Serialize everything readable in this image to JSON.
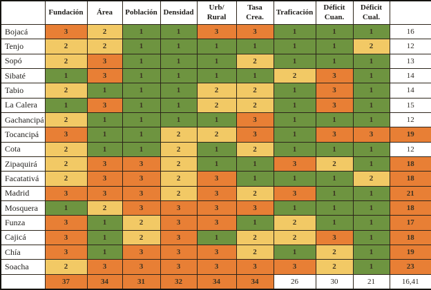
{
  "colors": {
    "score_bg": {
      "1": "#6e9440",
      "2": "#f2c965",
      "3": "#e87f35"
    },
    "highlight_bg": "#e87f35",
    "plain_bg": "#ffffff"
  },
  "header": {
    "columns": [
      [
        ""
      ],
      [
        "Fundación"
      ],
      [
        "Área"
      ],
      [
        "Población"
      ],
      [
        "Densidad"
      ],
      [
        "Urb/",
        "Rural"
      ],
      [
        "Tasa",
        "Crea."
      ],
      [
        "Traficación"
      ],
      [
        "Déficit",
        "Cuan."
      ],
      [
        "Déficit",
        "Cual."
      ],
      [
        ""
      ]
    ]
  },
  "rows": [
    {
      "label": "Bojacá",
      "scores": [
        3,
        2,
        1,
        1,
        3,
        3,
        1,
        1,
        1
      ],
      "total": "16",
      "total_highlight": false
    },
    {
      "label": "Tenjo",
      "scores": [
        2,
        2,
        1,
        1,
        1,
        1,
        1,
        1,
        2
      ],
      "total": "12",
      "total_highlight": false
    },
    {
      "label": "Sopó",
      "scores": [
        2,
        3,
        1,
        1,
        1,
        2,
        1,
        1,
        1
      ],
      "total": "13",
      "total_highlight": false
    },
    {
      "label": "Sibaté",
      "scores": [
        1,
        3,
        1,
        1,
        1,
        1,
        2,
        3,
        1
      ],
      "total": "14",
      "total_highlight": false
    },
    {
      "label": "Tabio",
      "scores": [
        2,
        1,
        1,
        1,
        2,
        2,
        1,
        3,
        1
      ],
      "total": "14",
      "total_highlight": false
    },
    {
      "label": "La Calera",
      "scores": [
        1,
        3,
        1,
        1,
        2,
        2,
        1,
        3,
        1
      ],
      "total": "15",
      "total_highlight": false
    },
    {
      "label": "Gachancipá",
      "scores": [
        2,
        1,
        1,
        1,
        1,
        3,
        1,
        1,
        1
      ],
      "total": "12",
      "total_highlight": false
    },
    {
      "label": "Tocancipá",
      "scores": [
        3,
        1,
        1,
        2,
        2,
        3,
        1,
        3,
        3
      ],
      "total": "19",
      "total_highlight": true
    },
    {
      "label": "Cota",
      "scores": [
        2,
        1,
        1,
        2,
        1,
        2,
        1,
        1,
        1
      ],
      "total": "12",
      "total_highlight": false
    },
    {
      "label": "Zipaquirá",
      "scores": [
        2,
        3,
        3,
        2,
        1,
        1,
        3,
        2,
        1
      ],
      "total": "18",
      "total_highlight": true
    },
    {
      "label": "Facatativá",
      "scores": [
        2,
        3,
        3,
        2,
        3,
        1,
        1,
        1,
        2
      ],
      "total": "18",
      "total_highlight": true
    },
    {
      "label": "Madrid",
      "scores": [
        3,
        3,
        3,
        2,
        3,
        2,
        3,
        1,
        1
      ],
      "total": "21",
      "total_highlight": true
    },
    {
      "label": "Mosquera",
      "scores": [
        1,
        2,
        3,
        3,
        3,
        3,
        1,
        1,
        1
      ],
      "total": "18",
      "total_highlight": true
    },
    {
      "label": "Funza",
      "scores": [
        3,
        1,
        2,
        3,
        3,
        1,
        2,
        1,
        1
      ],
      "total": "17",
      "total_highlight": true
    },
    {
      "label": "Cajicá",
      "scores": [
        3,
        1,
        2,
        3,
        1,
        2,
        2,
        3,
        1
      ],
      "total": "18",
      "total_highlight": true
    },
    {
      "label": "Chía",
      "scores": [
        3,
        1,
        3,
        3,
        3,
        2,
        1,
        2,
        1
      ],
      "total": "19",
      "total_highlight": true
    },
    {
      "label": "Soacha",
      "scores": [
        2,
        3,
        3,
        3,
        3,
        3,
        3,
        2,
        1
      ],
      "total": "23",
      "total_highlight": true
    }
  ],
  "footer": {
    "label": "",
    "values": [
      "37",
      "34",
      "31",
      "32",
      "34",
      "34",
      "26",
      "30",
      "21",
      "16,41"
    ],
    "highlighted": [
      true,
      true,
      true,
      true,
      true,
      true,
      false,
      false,
      false,
      false
    ]
  }
}
